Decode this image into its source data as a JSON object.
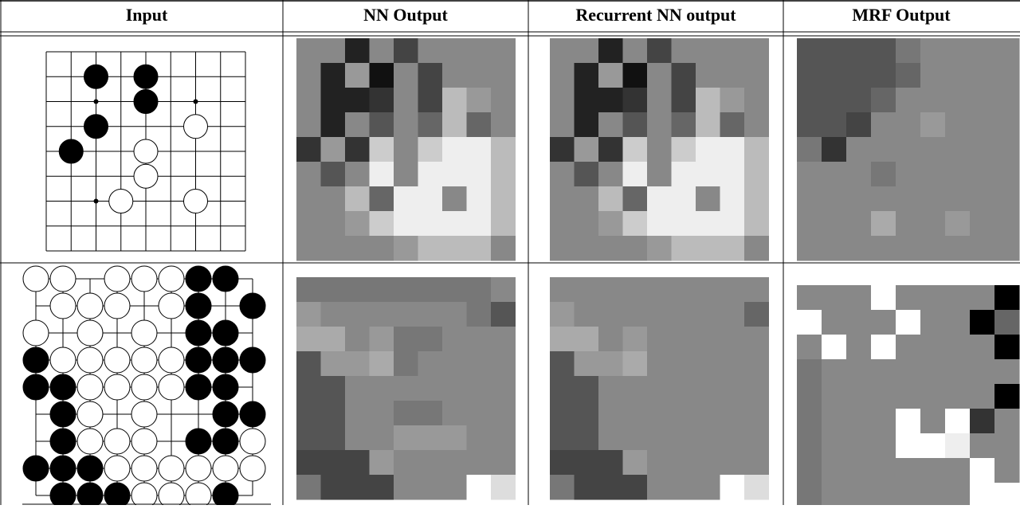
{
  "table": {
    "headers": [
      "Input",
      "NN Output",
      "Recurrent NN output",
      "MRF Output"
    ]
  }
}
